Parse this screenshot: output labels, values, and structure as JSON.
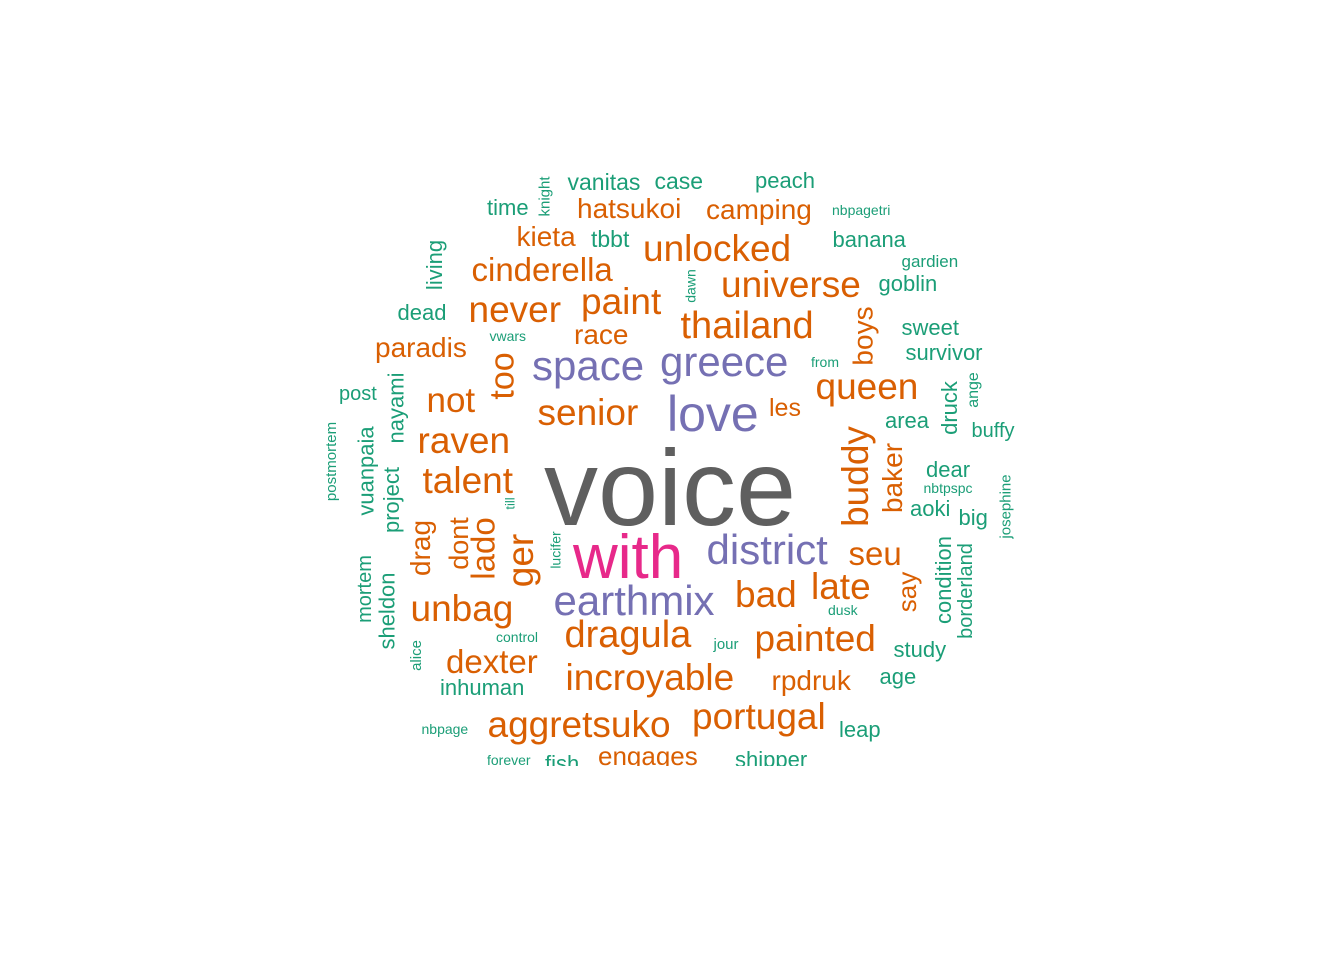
{
  "colors": {
    "grey": "#5f5f5f",
    "magenta": "#e7298a",
    "purple": "#7570b3",
    "orange": "#d95f02",
    "green": "#1b9e77"
  },
  "chart_data": {
    "type": "wordcloud",
    "words": [
      {
        "text": "voice",
        "color": "grey",
        "size": 1
      },
      {
        "text": "with",
        "color": "magenta",
        "size": 2
      },
      {
        "text": "love",
        "color": "purple",
        "size": 3
      },
      {
        "text": "greece",
        "color": "purple",
        "size": 3
      },
      {
        "text": "space",
        "color": "purple",
        "size": 3
      },
      {
        "text": "district",
        "color": "purple",
        "size": 3
      },
      {
        "text": "earthmix",
        "color": "purple",
        "size": 3
      },
      {
        "text": "thailand",
        "color": "orange",
        "size": 4
      },
      {
        "text": "unlocked",
        "color": "orange",
        "size": 4
      },
      {
        "text": "universe",
        "color": "orange",
        "size": 4
      },
      {
        "text": "senior",
        "color": "orange",
        "size": 4
      },
      {
        "text": "queen",
        "color": "orange",
        "size": 4
      },
      {
        "text": "dragula",
        "color": "orange",
        "size": 4
      },
      {
        "text": "painted",
        "color": "orange",
        "size": 4
      },
      {
        "text": "incroyable",
        "color": "orange",
        "size": 4
      },
      {
        "text": "aggretsuko",
        "color": "orange",
        "size": 4
      },
      {
        "text": "portugal",
        "color": "orange",
        "size": 4
      },
      {
        "text": "paint",
        "color": "orange",
        "size": 4
      },
      {
        "text": "never",
        "color": "orange",
        "size": 4
      },
      {
        "text": "cinderella",
        "color": "orange",
        "size": 5
      },
      {
        "text": "raven",
        "color": "orange",
        "size": 4
      },
      {
        "text": "talent",
        "color": "orange",
        "size": 4
      },
      {
        "text": "buddy",
        "color": "orange",
        "size": 4
      },
      {
        "text": "ger",
        "color": "orange",
        "size": 4
      },
      {
        "text": "late",
        "color": "orange",
        "size": 4
      },
      {
        "text": "bad",
        "color": "orange",
        "size": 4
      },
      {
        "text": "unbag",
        "color": "orange",
        "size": 4
      },
      {
        "text": "not",
        "color": "orange",
        "size": 4
      },
      {
        "text": "too",
        "color": "orange",
        "size": 5
      },
      {
        "text": "seu",
        "color": "orange",
        "size": 5
      },
      {
        "text": "dexter",
        "color": "orange",
        "size": 5
      },
      {
        "text": "lado",
        "color": "orange",
        "size": 5
      },
      {
        "text": "hatsukoi",
        "color": "orange",
        "size": 5
      },
      {
        "text": "camping",
        "color": "orange",
        "size": 5
      },
      {
        "text": "kieta",
        "color": "orange",
        "size": 5
      },
      {
        "text": "race",
        "color": "orange",
        "size": 5
      },
      {
        "text": "paradis",
        "color": "orange",
        "size": 5
      },
      {
        "text": "boys",
        "color": "orange",
        "size": 5
      },
      {
        "text": "baker",
        "color": "orange",
        "size": 5
      },
      {
        "text": "rpdruk",
        "color": "orange",
        "size": 5
      },
      {
        "text": "engages",
        "color": "orange",
        "size": 5
      },
      {
        "text": "drag",
        "color": "orange",
        "size": 5
      },
      {
        "text": "dont",
        "color": "orange",
        "size": 5
      },
      {
        "text": "say",
        "color": "orange",
        "size": 5
      },
      {
        "text": "les",
        "color": "orange",
        "size": 6
      },
      {
        "text": "vanitas",
        "color": "green",
        "size": 6
      },
      {
        "text": "case",
        "color": "green",
        "size": 6
      },
      {
        "text": "peach",
        "color": "green",
        "size": 6
      },
      {
        "text": "time",
        "color": "green",
        "size": 6
      },
      {
        "text": "knight",
        "color": "green",
        "size": 7
      },
      {
        "text": "nbpagetri",
        "color": "green",
        "size": 7
      },
      {
        "text": "tbbt",
        "color": "green",
        "size": 6
      },
      {
        "text": "banana",
        "color": "green",
        "size": 6
      },
      {
        "text": "gardien",
        "color": "green",
        "size": 7
      },
      {
        "text": "living",
        "color": "green",
        "size": 6
      },
      {
        "text": "dawn",
        "color": "green",
        "size": 7
      },
      {
        "text": "goblin",
        "color": "green",
        "size": 6
      },
      {
        "text": "dead",
        "color": "green",
        "size": 6
      },
      {
        "text": "vwars",
        "color": "green",
        "size": 7
      },
      {
        "text": "sweet",
        "color": "green",
        "size": 6
      },
      {
        "text": "survivor",
        "color": "green",
        "size": 6
      },
      {
        "text": "from",
        "color": "green",
        "size": 7
      },
      {
        "text": "post",
        "color": "green",
        "size": 6
      },
      {
        "text": "nayami",
        "color": "green",
        "size": 6
      },
      {
        "text": "ange",
        "color": "green",
        "size": 7
      },
      {
        "text": "druck",
        "color": "green",
        "size": 6
      },
      {
        "text": "area",
        "color": "green",
        "size": 6
      },
      {
        "text": "buffy",
        "color": "green",
        "size": 6
      },
      {
        "text": "postmortem",
        "color": "green",
        "size": 7
      },
      {
        "text": "vuanpaia",
        "color": "green",
        "size": 6
      },
      {
        "text": "project",
        "color": "green",
        "size": 6
      },
      {
        "text": "dear",
        "color": "green",
        "size": 6
      },
      {
        "text": "nbtpspc",
        "color": "green",
        "size": 7
      },
      {
        "text": "josephine",
        "color": "green",
        "size": 7
      },
      {
        "text": "till",
        "color": "green",
        "size": 7
      },
      {
        "text": "aoki",
        "color": "green",
        "size": 6
      },
      {
        "text": "big",
        "color": "green",
        "size": 6
      },
      {
        "text": "lucifer",
        "color": "green",
        "size": 7
      },
      {
        "text": "mortem",
        "color": "green",
        "size": 6
      },
      {
        "text": "condition",
        "color": "green",
        "size": 6
      },
      {
        "text": "borderland",
        "color": "green",
        "size": 6
      },
      {
        "text": "sheldon",
        "color": "green",
        "size": 6
      },
      {
        "text": "dusk",
        "color": "green",
        "size": 7
      },
      {
        "text": "control",
        "color": "green",
        "size": 7
      },
      {
        "text": "jour",
        "color": "green",
        "size": 7
      },
      {
        "text": "study",
        "color": "green",
        "size": 6
      },
      {
        "text": "alice",
        "color": "green",
        "size": 7
      },
      {
        "text": "inhuman",
        "color": "green",
        "size": 6
      },
      {
        "text": "age",
        "color": "green",
        "size": 6
      },
      {
        "text": "nbpage",
        "color": "green",
        "size": 7
      },
      {
        "text": "leap",
        "color": "green",
        "size": 6
      },
      {
        "text": "forever",
        "color": "green",
        "size": 7
      },
      {
        "text": "fish",
        "color": "green",
        "size": 6
      },
      {
        "text": "shipper",
        "color": "green",
        "size": 6
      }
    ]
  }
}
